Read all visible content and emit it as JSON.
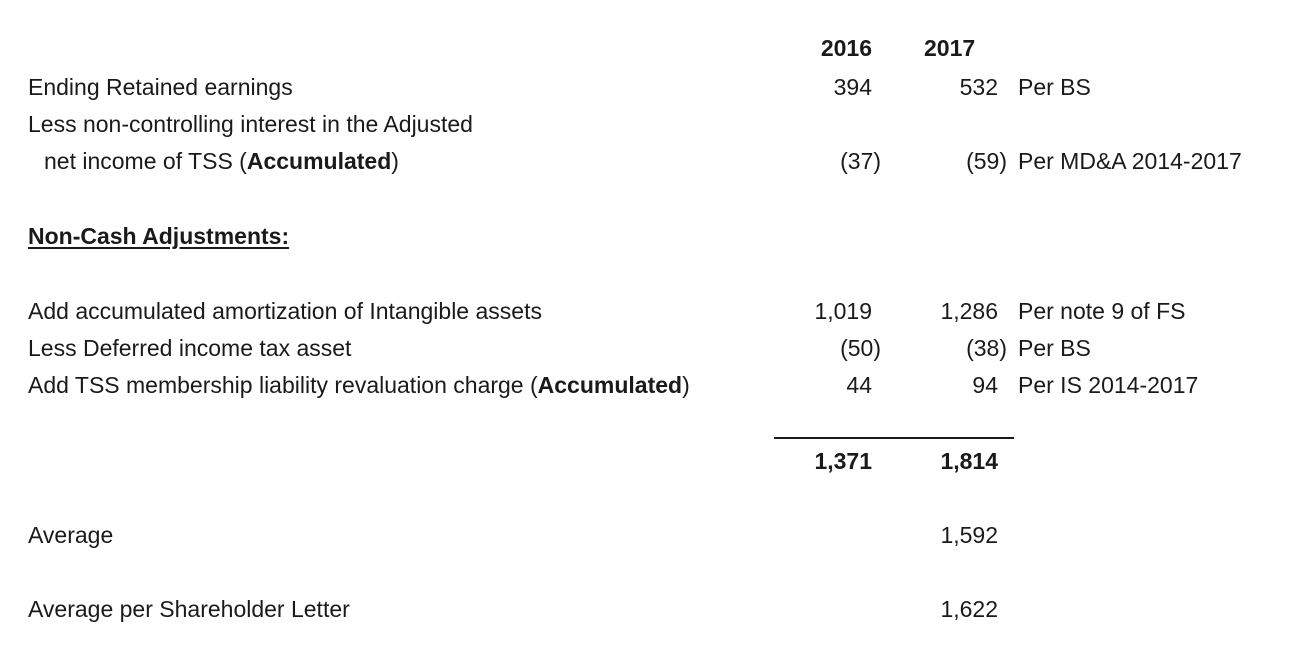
{
  "headers": {
    "y2016": "2016",
    "y2017": "2017"
  },
  "rows": {
    "ending_re": {
      "label": "Ending Retained earnings",
      "v2016": "394",
      "v2017": "532",
      "note": "Per BS"
    },
    "nci": {
      "label_line1": "Less non-controlling interest in the Adjusted",
      "label_line2_pre": "net income of TSS (",
      "label_line2_bold": "Accumulated",
      "label_line2_post": ")",
      "v2016": "(37)",
      "v2017": "(59)",
      "note": "Per MD&A 2014-2017"
    },
    "section_title": "Non-Cash Adjustments:",
    "amort": {
      "label": "Add accumulated amortization of Intangible assets",
      "v2016": "1,019",
      "v2017": "1,286",
      "note": "Per note 9 of FS"
    },
    "deferred": {
      "label": "Less Deferred income tax asset",
      "v2016": "(50)",
      "v2017": "(38)",
      "note": "Per BS"
    },
    "tss": {
      "label_pre": "Add TSS membership liability revaluation charge (",
      "label_bold": "Accumulated",
      "label_post": ")",
      "v2016": "44",
      "v2017": "94",
      "note": "Per IS 2014-2017"
    },
    "total": {
      "v2016": "1,371",
      "v2017": "1,814"
    },
    "average": {
      "label": "Average",
      "v2017": "1,592"
    },
    "avg_shareholder": {
      "label": "Average per Shareholder Letter",
      "v2017": "1,622"
    }
  }
}
